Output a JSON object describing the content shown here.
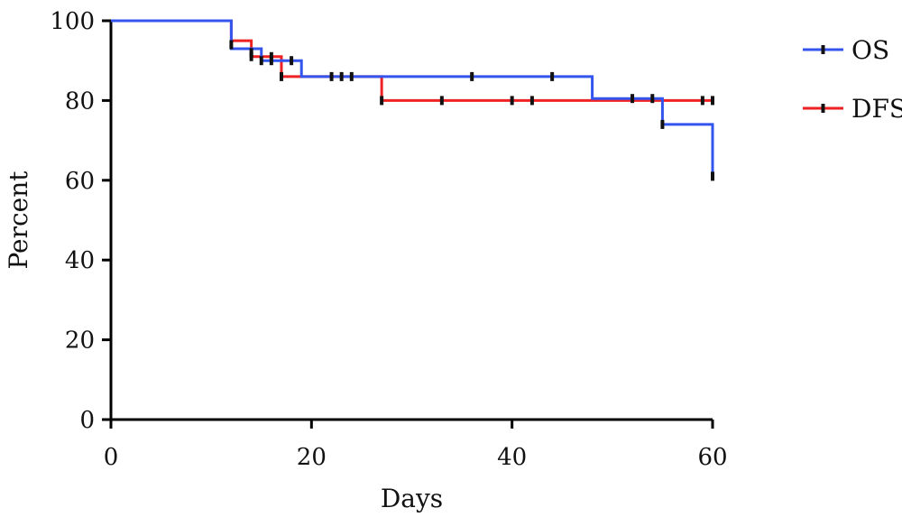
{
  "chart_data": {
    "type": "line",
    "title": "",
    "xlabel": "Days",
    "ylabel": "Percent",
    "xlim": [
      0,
      60
    ],
    "ylim": [
      0,
      100
    ],
    "x_ticks": [
      0,
      20,
      40,
      60
    ],
    "y_ticks": [
      0,
      20,
      40,
      60,
      80,
      100
    ],
    "x_tick_labels": [
      "0",
      "20",
      "40",
      "60"
    ],
    "y_tick_labels": [
      "0",
      "20",
      "40",
      "60",
      "80",
      "100"
    ],
    "grid": false,
    "legend_position": "right",
    "series": [
      {
        "name": "OS",
        "color": "#3355ee",
        "steps": [
          [
            0,
            100
          ],
          [
            12,
            93
          ],
          [
            15,
            90
          ],
          [
            19,
            86
          ],
          [
            48,
            80.5
          ],
          [
            55,
            74
          ],
          [
            60,
            61
          ]
        ],
        "censored": [
          [
            12,
            94
          ],
          [
            14,
            92
          ],
          [
            15,
            90
          ],
          [
            16,
            90
          ],
          [
            18,
            90
          ],
          [
            22,
            86
          ],
          [
            23,
            86
          ],
          [
            24,
            86
          ],
          [
            36,
            86
          ],
          [
            44,
            86
          ],
          [
            52,
            80.5
          ],
          [
            54,
            80.5
          ],
          [
            55,
            74
          ],
          [
            60,
            61
          ]
        ]
      },
      {
        "name": "DFS",
        "color": "#ee2222",
        "steps": [
          [
            0,
            100
          ],
          [
            12,
            95
          ],
          [
            14,
            91
          ],
          [
            17,
            86
          ],
          [
            27,
            80
          ],
          [
            60,
            80
          ]
        ],
        "censored": [
          [
            14,
            91
          ],
          [
            16,
            91
          ],
          [
            17,
            86
          ],
          [
            27,
            80
          ],
          [
            33,
            80
          ],
          [
            40,
            80
          ],
          [
            42,
            80
          ],
          [
            59,
            80
          ],
          [
            60,
            80
          ]
        ]
      }
    ]
  }
}
